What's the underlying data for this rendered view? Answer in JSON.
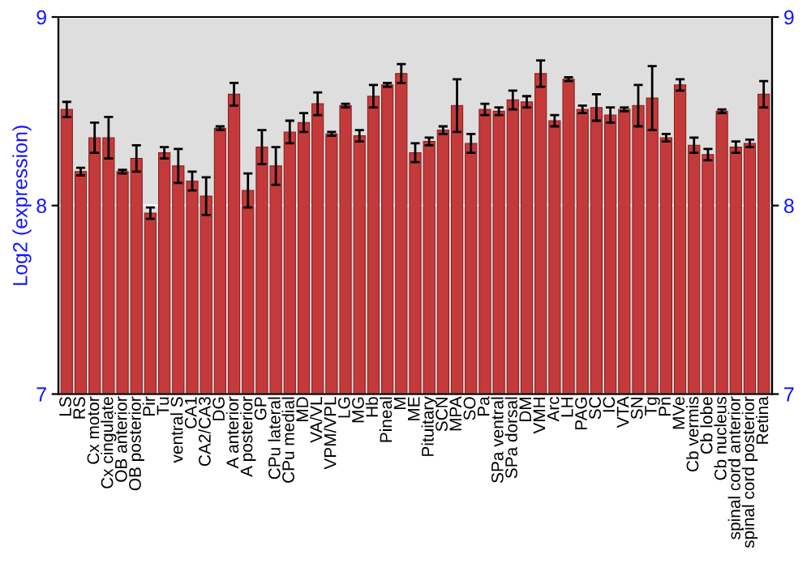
{
  "chart_data": {
    "type": "bar",
    "ylabel": "Log2 (expression)",
    "categories": [
      "LS",
      "RS",
      "Cx motor",
      "Cx cingulate",
      "OB anterior",
      "OB posterior",
      "Pir",
      "Tu",
      "ventral S",
      "CA1",
      "CA2/CA3",
      "DG",
      "A anterior",
      "A posterior",
      "GP",
      "CPu lateral",
      "CPu medial",
      "MD",
      "VA/VL",
      "VPM/VPL",
      "LG",
      "MG",
      "Hb",
      "Pineal",
      "M",
      "ME",
      "Pituitary",
      "SCN",
      "MPA",
      "SO",
      "Pa",
      "SPa ventral",
      "SPa dorsal",
      "DM",
      "VMH",
      "Arc",
      "LH",
      "PAG",
      "SC",
      "IC",
      "VTA",
      "SN",
      "Tg",
      "Pn",
      "MVe",
      "Cb vermis",
      "Cb lobe",
      "Cb nucleus",
      "spinal cord anterior",
      "spinal cord posterior",
      "Retina"
    ],
    "series": [
      {
        "color": "#c43a3a",
        "values": [
          8.51,
          8.18,
          8.36,
          8.36,
          8.18,
          8.25,
          7.96,
          8.28,
          8.21,
          8.13,
          8.05,
          8.41,
          8.59,
          8.08,
          8.31,
          8.21,
          8.39,
          8.44,
          8.54,
          8.38,
          8.53,
          8.37,
          8.58,
          8.64,
          8.7,
          8.28,
          8.34,
          8.4,
          8.53,
          8.33,
          8.51,
          8.5,
          8.56,
          8.55,
          8.7,
          8.45,
          8.67,
          8.51,
          8.52,
          8.48,
          8.51,
          8.53,
          8.57,
          8.36,
          8.64,
          8.32,
          8.27,
          8.5,
          8.31,
          8.33,
          8.59
        ],
        "errors": [
          0.04,
          0.02,
          0.08,
          0.11,
          0.01,
          0.07,
          0.03,
          0.03,
          0.09,
          0.05,
          0.1,
          0.01,
          0.06,
          0.09,
          0.09,
          0.1,
          0.06,
          0.05,
          0.06,
          0.01,
          0.01,
          0.03,
          0.06,
          0.01,
          0.05,
          0.05,
          0.02,
          0.02,
          0.14,
          0.05,
          0.03,
          0.02,
          0.05,
          0.03,
          0.07,
          0.03,
          0.01,
          0.02,
          0.07,
          0.04,
          0.01,
          0.11,
          0.17,
          0.02,
          0.03,
          0.04,
          0.03,
          0.01,
          0.03,
          0.02,
          0.07
        ]
      }
    ],
    "ylim": [
      7,
      9
    ],
    "yticks": [
      7,
      8,
      9
    ],
    "y2lim": [
      7,
      9
    ],
    "y2ticks": [
      7,
      8,
      9
    ],
    "grid": "y"
  }
}
